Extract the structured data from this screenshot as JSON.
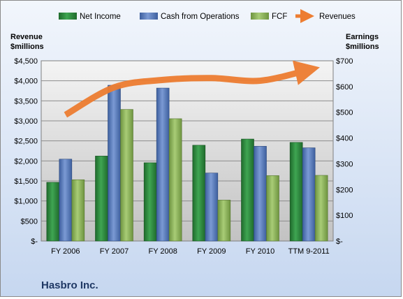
{
  "chart_data": {
    "type": "bar",
    "title": "Hasbro Inc.",
    "categories": [
      "FY 2006",
      "FY 2007",
      "FY 2008",
      "FY 2009",
      "FY 2010",
      "TTM 9-2011"
    ],
    "left_axis": {
      "label_line1": "Revenue",
      "label_line2": "$millions",
      "ylim": [
        0,
        4500
      ],
      "ticks": [
        0,
        500,
        1000,
        1500,
        2000,
        2500,
        3000,
        3500,
        4000,
        4500
      ],
      "tick_labels": [
        "$-",
        "$500",
        "$1,000",
        "$1,500",
        "$2,000",
        "$2,500",
        "$3,000",
        "$3,500",
        "$4,000",
        "$4,500"
      ]
    },
    "right_axis": {
      "label_line1": "Earnings",
      "label_line2": "$millions",
      "ylim": [
        0,
        700
      ],
      "ticks": [
        0,
        100,
        200,
        300,
        400,
        500,
        600,
        700
      ],
      "tick_labels": [
        "$-",
        "$100",
        "$200",
        "$300",
        "$400",
        "$500",
        "$600",
        "$700"
      ]
    },
    "series": [
      {
        "name": "Net Income",
        "axis": "right",
        "color": "#2e8b3e",
        "values": [
          228,
          330,
          304,
          372,
          396,
          383
        ]
      },
      {
        "name": "Cash from Operations",
        "axis": "right",
        "color": "#5b7fbf",
        "values": [
          318,
          605,
          594,
          264,
          368,
          362
        ]
      },
      {
        "name": "FCF",
        "axis": "right",
        "color": "#8db35a",
        "values": [
          238,
          511,
          475,
          159,
          254,
          255
        ]
      },
      {
        "name": "Revenues",
        "axis": "left",
        "type": "line",
        "color": "#ed7d31",
        "values": [
          3151,
          3838,
          4022,
          4068,
          4002,
          4275
        ]
      }
    ],
    "grid": true,
    "legend": "top"
  }
}
